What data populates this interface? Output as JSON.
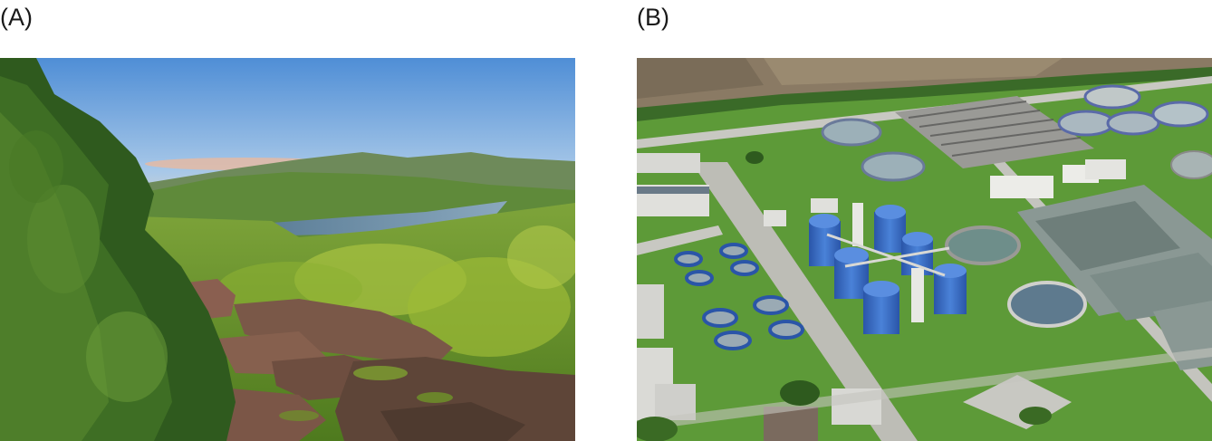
{
  "figure": {
    "panels": [
      {
        "label": "(A)",
        "subject": "mountain-lake-forest-landscape"
      },
      {
        "label": "(B)",
        "subject": "wastewater-treatment-plant-aerial"
      }
    ]
  },
  "colors": {
    "sky_top": "#4f8ed6",
    "sky_bottom": "#c9dff0",
    "forest_green": "#6f9a2a",
    "lake_blue": "#6d8ea8",
    "rock_brown": "#7a5a4a",
    "lawn_green": "#5aa33a",
    "tank_blue": "#3a6fc8",
    "concrete": "#c8c8c4",
    "water_grey": "#7a8a86"
  }
}
